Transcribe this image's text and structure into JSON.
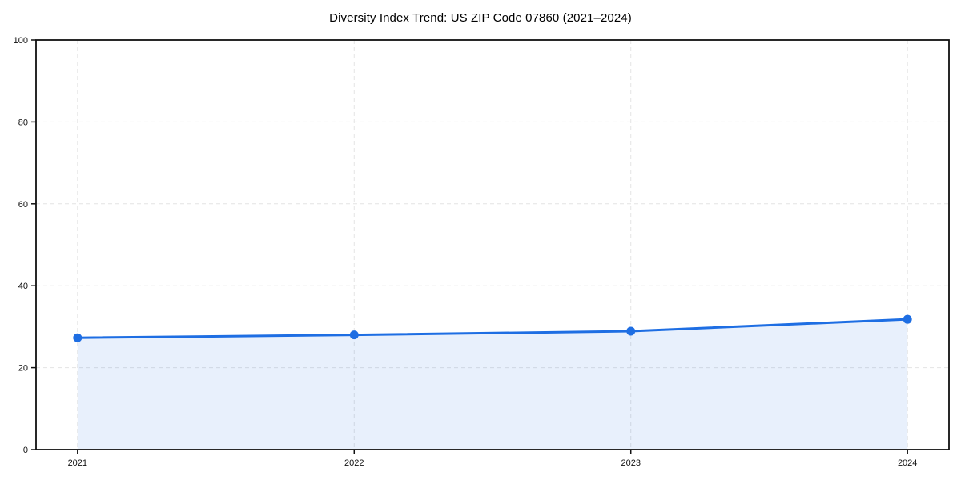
{
  "chart_data": {
    "type": "line",
    "area_fill": true,
    "title": "Diversity Index Trend: US ZIP Code 07860 (2021–2024)",
    "categories": [
      "2021",
      "2022",
      "2023",
      "2024"
    ],
    "x_values": [
      2021,
      2022,
      2023,
      2024
    ],
    "series": [
      {
        "name": "Diversity Index",
        "values": [
          27.3,
          28.0,
          28.9,
          31.8
        ]
      }
    ],
    "xlabel": "",
    "ylabel": "",
    "xlim": [
      2020.85,
      2024.15
    ],
    "ylim": [
      0,
      100
    ],
    "y_ticks": [
      0,
      20,
      40,
      60,
      80,
      100
    ],
    "grid": "dashed, horizontal and vertical",
    "legend_position": "none",
    "colors": {
      "line": "#1e6ee3",
      "marker": "#1e6ee3",
      "fill": "rgba(30, 110, 227, 0.10)",
      "grid": "#e4e4e4",
      "spine": "#111111",
      "text": "#111111",
      "background": "#ffffff"
    }
  }
}
